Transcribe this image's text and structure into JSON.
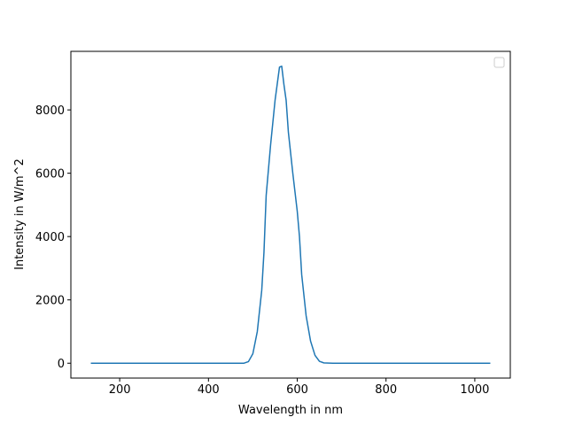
{
  "chart_data": {
    "type": "line",
    "x_label": "Wavelength in nm",
    "y_label": "Intensity in W/m^2",
    "x": [
      135,
      200,
      300,
      400,
      480,
      490,
      500,
      510,
      520,
      525,
      530,
      540,
      550,
      560,
      565,
      570,
      575,
      580,
      590,
      600,
      605,
      610,
      620,
      630,
      640,
      650,
      660,
      680,
      800,
      1000,
      1035
    ],
    "series": [
      {
        "color": "#1f77b4",
        "values": [
          0,
          0,
          0,
          0,
          0,
          50,
          300,
          1000,
          2300,
          3500,
          5300,
          6900,
          8300,
          9350,
          9380,
          8800,
          8300,
          7300,
          6000,
          4800,
          4000,
          2800,
          1500,
          700,
          250,
          60,
          10,
          0,
          0,
          0,
          0
        ]
      }
    ],
    "xlim": [
      90,
      1080
    ],
    "ylim": [
      -469,
      9849
    ],
    "xticks": [
      200,
      400,
      600,
      800,
      1000
    ],
    "yticks": [
      0,
      2000,
      4000,
      6000,
      8000
    ]
  }
}
